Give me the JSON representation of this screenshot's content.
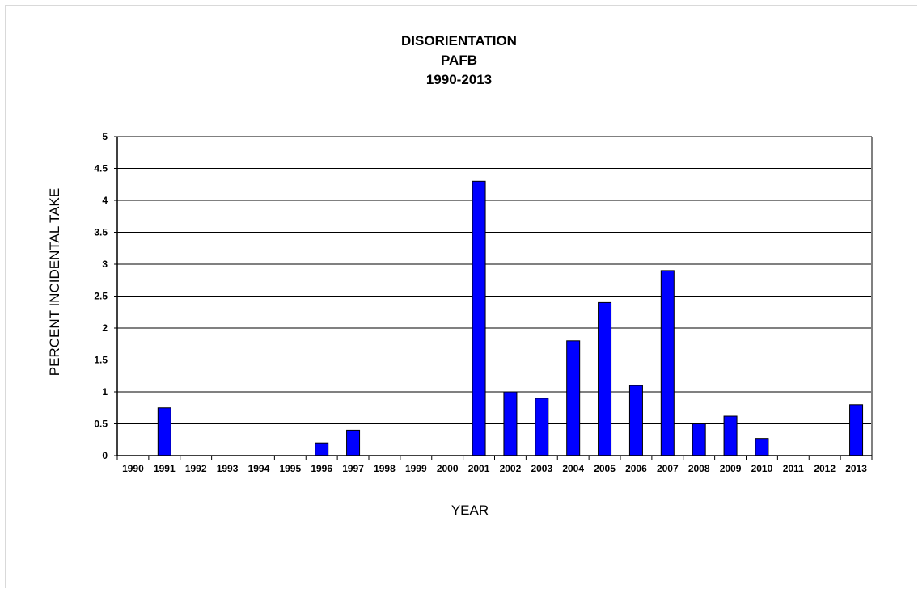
{
  "chart_data": {
    "type": "bar",
    "title": [
      "DISORIENTATION",
      "PAFB",
      "1990-2013"
    ],
    "xlabel": "YEAR",
    "ylabel": "PERCENT INCIDENTAL TAKE",
    "ylim": [
      0,
      5
    ],
    "yticks": [
      "0",
      "0.5",
      "1",
      "1.5",
      "2",
      "2.5",
      "3",
      "3.5",
      "4",
      "4.5",
      "5"
    ],
    "grid": true,
    "categories": [
      "1990",
      "1991",
      "1992",
      "1993",
      "1994",
      "1995",
      "1996",
      "1997",
      "1998",
      "1999",
      "2000",
      "2001",
      "2002",
      "2003",
      "2004",
      "2005",
      "2006",
      "2007",
      "2008",
      "2009",
      "2010",
      "2011",
      "2012",
      "2013"
    ],
    "values": [
      0,
      0.75,
      0,
      0,
      0,
      0,
      0.2,
      0.4,
      0,
      0,
      0,
      4.3,
      1.0,
      0.9,
      1.8,
      2.4,
      1.1,
      2.9,
      0.5,
      0.62,
      0.27,
      0,
      0,
      0.8
    ],
    "bar_color": "#0000ff"
  }
}
